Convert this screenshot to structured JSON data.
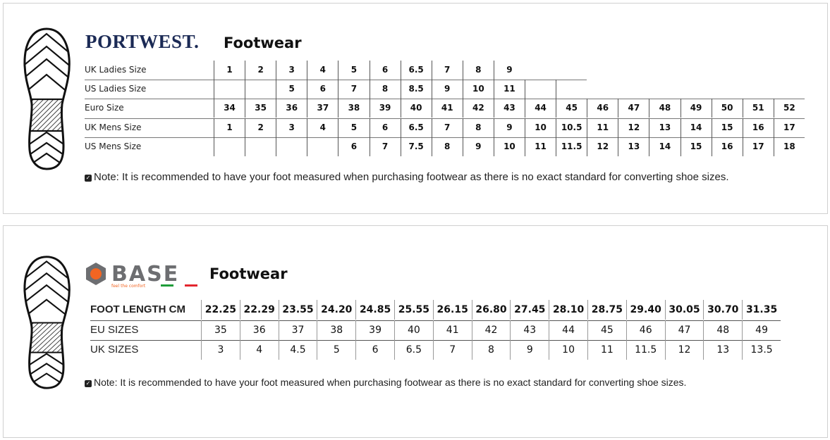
{
  "portwest": {
    "brand": "PORTWEST.",
    "title": "Footwear",
    "rows": [
      {
        "label": "UK Ladies Size",
        "values": [
          "1",
          "2",
          "3",
          "4",
          "5",
          "6",
          "6.5",
          "7",
          "8",
          "9",
          null,
          null,
          null,
          null,
          null,
          null,
          null,
          null,
          null
        ]
      },
      {
        "label": "US Ladies Size",
        "values": [
          "",
          "",
          "5",
          "6",
          "7",
          "8",
          "8.5",
          "9",
          "10",
          "11",
          "",
          "",
          null,
          null,
          null,
          null,
          null,
          null,
          null
        ]
      },
      {
        "label": "Euro Size",
        "values": [
          "34",
          "35",
          "36",
          "37",
          "38",
          "39",
          "40",
          "41",
          "42",
          "43",
          "44",
          "45",
          "46",
          "47",
          "48",
          "49",
          "50",
          "51",
          "52"
        ]
      },
      {
        "label": "UK Mens Size",
        "values": [
          "1",
          "2",
          "3",
          "4",
          "5",
          "6",
          "6.5",
          "7",
          "8",
          "9",
          "10",
          "10.5",
          "11",
          "12",
          "13",
          "14",
          "15",
          "16",
          "17"
        ]
      },
      {
        "label": "US Mens Size",
        "values": [
          "",
          "",
          "",
          "",
          "6",
          "7",
          "7.5",
          "8",
          "9",
          "10",
          "11",
          "11.5",
          "12",
          "13",
          "14",
          "15",
          "16",
          "17",
          "18"
        ]
      }
    ],
    "note": "Note: It is recommended to have your foot measured when purchasing footwear as there is no exact standard for converting shoe sizes."
  },
  "base": {
    "brand": "Base",
    "tagline": "feel the comfort",
    "title": "Footwear",
    "colors": {
      "orange": "#f26522",
      "grey": "#6d6e71",
      "green": "#1f9d3a",
      "red": "#e3262e"
    },
    "rows": [
      {
        "label": "FOOT LENGTH CM",
        "values": [
          "22.25",
          "22.29",
          "23.55",
          "24.20",
          "24.85",
          "25.55",
          "26.15",
          "26.80",
          "27.45",
          "28.10",
          "28.75",
          "29.40",
          "30.05",
          "30.70",
          "31.35"
        ]
      },
      {
        "label": "EU SIZES",
        "values": [
          "35",
          "36",
          "37",
          "38",
          "39",
          "40",
          "41",
          "42",
          "43",
          "44",
          "45",
          "46",
          "47",
          "48",
          "49"
        ]
      },
      {
        "label": "UK SIZES",
        "values": [
          "3",
          "4",
          "4.5",
          "5",
          "6",
          "6.5",
          "7",
          "8",
          "9",
          "10",
          "11",
          "11.5",
          "12",
          "13",
          "13.5"
        ]
      }
    ],
    "note": "Note: It is recommended to have your foot measured when purchasing footwear as there is no exact standard for converting shoe sizes."
  }
}
